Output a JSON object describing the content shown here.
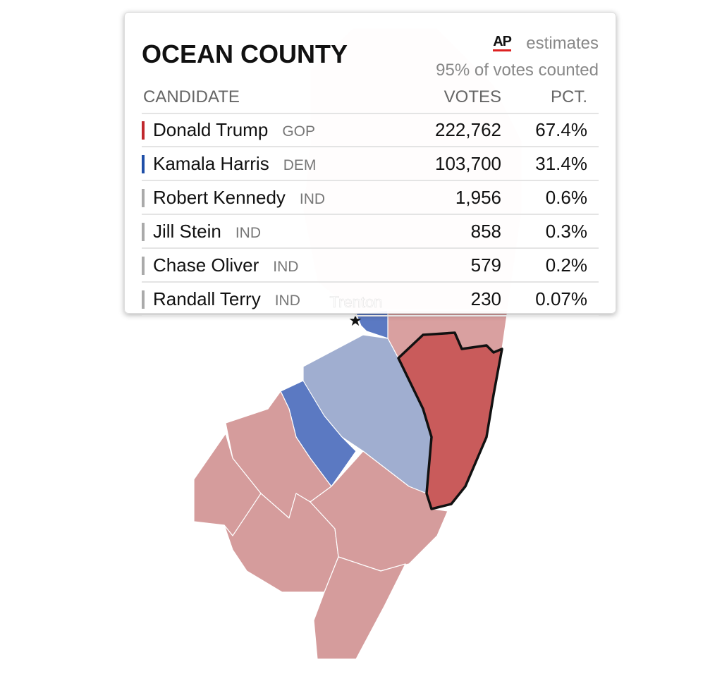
{
  "map": {
    "city_label": "Trenton"
  },
  "popup": {
    "title": "OCEAN COUNTY",
    "source": "AP",
    "source_note": "estimates",
    "reporting": "95% of votes counted",
    "columns": [
      "CANDIDATE",
      "VOTES",
      "PCT."
    ],
    "rows": [
      {
        "name": "Donald Trump",
        "party": "GOP",
        "votes": "222,762",
        "pct": "67.4%",
        "color": "#c0282d"
      },
      {
        "name": "Kamala Harris",
        "party": "DEM",
        "votes": "103,700",
        "pct": "31.4%",
        "color": "#1f4fa8"
      },
      {
        "name": "Robert Kennedy",
        "party": "IND",
        "votes": "1,956",
        "pct": "0.6%",
        "color": "#aaaaaa"
      },
      {
        "name": "Jill Stein",
        "party": "IND",
        "votes": "858",
        "pct": "0.3%",
        "color": "#aaaaaa"
      },
      {
        "name": "Chase Oliver",
        "party": "IND",
        "votes": "579",
        "pct": "0.2%",
        "color": "#aaaaaa"
      },
      {
        "name": "Randall Terry",
        "party": "IND",
        "votes": "230",
        "pct": "0.07%",
        "color": "#aaaaaa"
      }
    ]
  }
}
